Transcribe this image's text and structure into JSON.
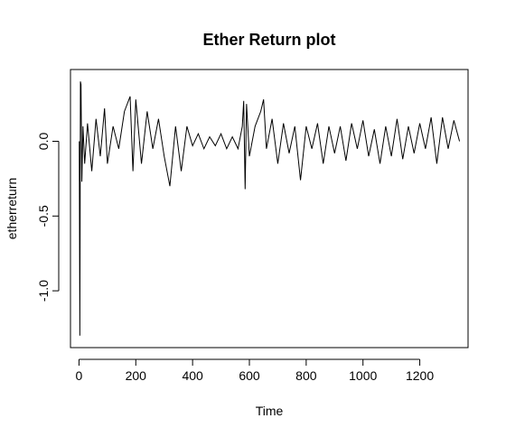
{
  "chart_data": {
    "type": "line",
    "title": "Ether Return plot",
    "xlabel": "Time",
    "ylabel": "etherreturn",
    "xlim": [
      -30,
      1370
    ],
    "ylim": [
      -1.38,
      0.48
    ],
    "x_ticks": [
      0,
      200,
      400,
      600,
      800,
      1000,
      1200
    ],
    "x_tick_labels": [
      "0",
      "200",
      "400",
      "600",
      "800",
      "1000",
      "1200"
    ],
    "y_ticks": [
      0.0,
      -0.5,
      -1.0
    ],
    "y_tick_labels": [
      "0.0",
      "-0.5",
      "-1.0"
    ],
    "grid": false,
    "legend": "none",
    "n_points": 1340,
    "series": [
      {
        "color": "#000000",
        "x": [
          1,
          3,
          5,
          7,
          10,
          14,
          20,
          30,
          45,
          60,
          75,
          90,
          100,
          120,
          140,
          160,
          180,
          190,
          200,
          220,
          240,
          260,
          280,
          300,
          320,
          340,
          360,
          380,
          400,
          420,
          440,
          460,
          480,
          500,
          520,
          540,
          560,
          575,
          580,
          585,
          590,
          600,
          620,
          640,
          650,
          660,
          680,
          700,
          720,
          740,
          760,
          780,
          800,
          820,
          840,
          860,
          880,
          900,
          920,
          940,
          960,
          980,
          1000,
          1020,
          1040,
          1060,
          1080,
          1100,
          1120,
          1140,
          1160,
          1180,
          1200,
          1220,
          1240,
          1260,
          1280,
          1300,
          1320,
          1340
        ],
        "values": [
          0.0,
          -1.3,
          0.4,
          0.38,
          -0.27,
          0.1,
          -0.15,
          0.12,
          -0.2,
          0.15,
          -0.1,
          0.22,
          -0.15,
          0.1,
          -0.05,
          0.2,
          0.3,
          -0.2,
          0.28,
          -0.15,
          0.2,
          -0.05,
          0.15,
          -0.1,
          -0.3,
          0.1,
          -0.2,
          0.1,
          -0.03,
          0.05,
          -0.05,
          0.03,
          -0.03,
          0.05,
          -0.05,
          0.03,
          -0.05,
          0.1,
          0.27,
          -0.32,
          0.25,
          -0.1,
          0.1,
          0.2,
          0.28,
          -0.05,
          0.15,
          -0.15,
          0.12,
          -0.08,
          0.1,
          -0.26,
          0.1,
          -0.05,
          0.12,
          -0.15,
          0.1,
          -0.08,
          0.1,
          -0.13,
          0.12,
          -0.05,
          0.14,
          -0.1,
          0.08,
          -0.15,
          0.1,
          -0.1,
          0.15,
          -0.12,
          0.1,
          -0.08,
          0.12,
          -0.05,
          0.16,
          -0.15,
          0.16,
          -0.05,
          0.14,
          0.0
        ]
      }
    ]
  }
}
